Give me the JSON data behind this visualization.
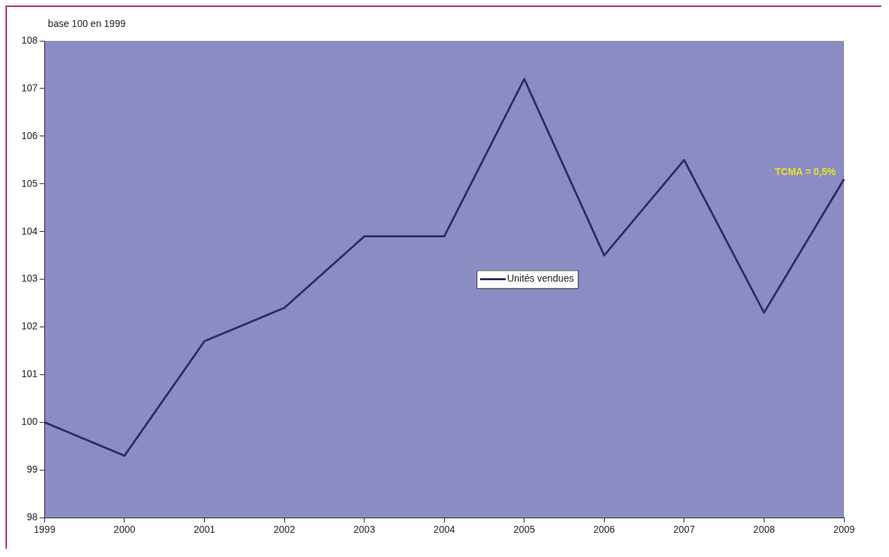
{
  "chart_data": {
    "type": "line",
    "ylabel": "base 100 en 1999",
    "categories": [
      "1999",
      "2000",
      "2001",
      "2002",
      "2003",
      "2004",
      "2005",
      "2006",
      "2007",
      "2008",
      "2009"
    ],
    "series": [
      {
        "name": "Unités vendues",
        "color": "#2e2a6e",
        "values": [
          100.0,
          99.3,
          101.7,
          102.4,
          103.9,
          103.9,
          107.2,
          103.5,
          105.5,
          102.3,
          105.1
        ]
      }
    ],
    "ylim": [
      98,
      108
    ],
    "yticks": [
      98,
      99,
      100,
      101,
      102,
      103,
      104,
      105,
      106,
      107,
      108
    ],
    "grid": false,
    "legend": "center",
    "marker": "none",
    "line_style": "solid",
    "annotations": [
      "TCMA = 0,5%"
    ]
  }
}
